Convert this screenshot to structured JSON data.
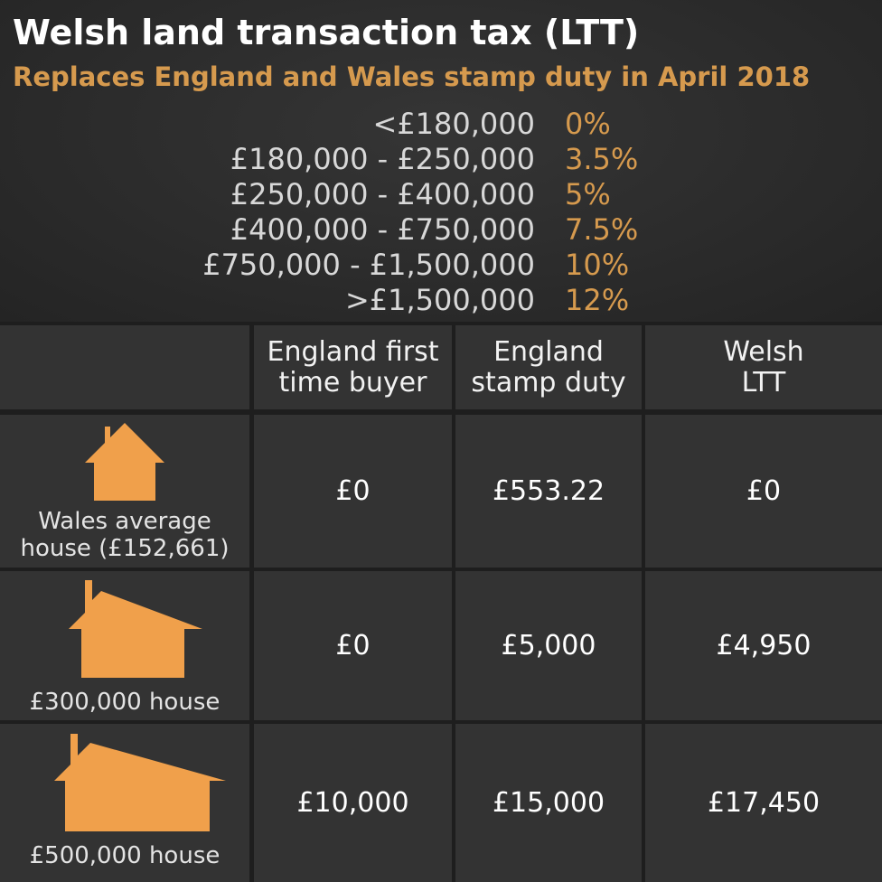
{
  "title": "Welsh land transaction tax (LTT)",
  "subtitle": "Replaces England and Wales stamp duty in April 2018",
  "bands": [
    {
      "range": "<£180,000",
      "rate": "0%"
    },
    {
      "range": "£180,000 - £250,000",
      "rate": "3.5%"
    },
    {
      "range": "£250,000 - £400,000",
      "rate": "5%"
    },
    {
      "range": "£400,000 - £750,000",
      "rate": "7.5%"
    },
    {
      "range": "£750,000 - £1,500,000",
      "rate": "10%"
    },
    {
      "range": ">£1,500,000",
      "rate": "12%"
    }
  ],
  "table": {
    "headers": [
      "England first time buyer",
      "England stamp duty",
      "Welsh LTT"
    ],
    "header_lines": [
      [
        "England first",
        "time buyer"
      ],
      [
        "England",
        "stamp duty"
      ],
      [
        "Welsh",
        "LTT"
      ]
    ],
    "rows": [
      {
        "label_lines": [
          "Wales average",
          "house (£152,661)"
        ],
        "icon": "house-icon",
        "values": [
          "£0",
          "£553.22",
          "£0"
        ]
      },
      {
        "label_lines": [
          "£300,000 house"
        ],
        "icon": "house-icon",
        "values": [
          "£0",
          "£5,000",
          "£4,950"
        ]
      },
      {
        "label_lines": [
          "£500,000 house"
        ],
        "icon": "house-icon",
        "values": [
          "£10,000",
          "£15,000",
          "£17,450"
        ]
      }
    ]
  },
  "colors": {
    "background": "#2a2a2a",
    "accent": "#d69a4e",
    "house": "#f0a04b",
    "cell": "#333333"
  }
}
